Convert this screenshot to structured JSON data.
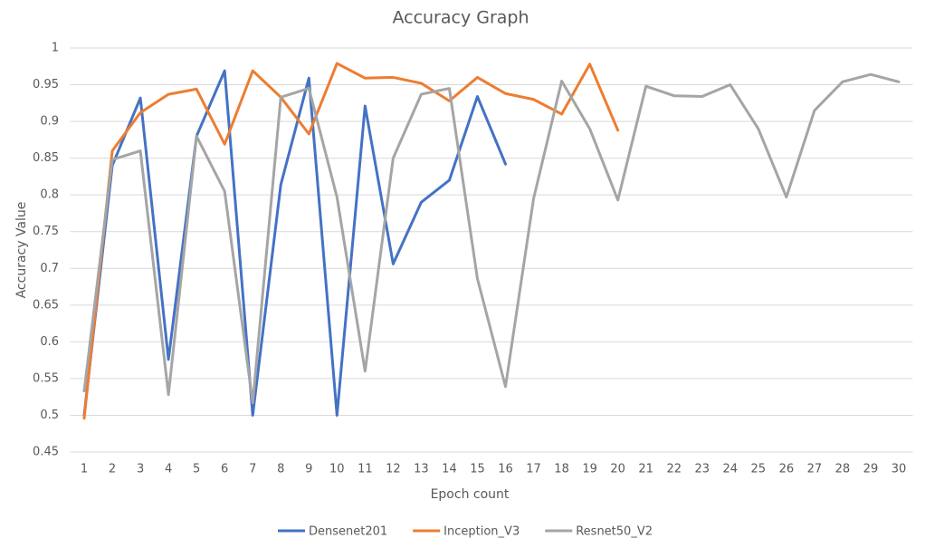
{
  "chart_data": {
    "type": "line",
    "title": "Accuracy Graph",
    "x_label": "Epoch count",
    "y_label": "Accuracy Value",
    "categories": [
      1,
      2,
      3,
      4,
      5,
      6,
      7,
      8,
      9,
      10,
      11,
      12,
      13,
      14,
      15,
      16,
      17,
      18,
      19,
      20,
      21,
      22,
      23,
      24,
      25,
      26,
      27,
      28,
      29,
      30
    ],
    "series": [
      {
        "name": "Densenet201",
        "color": "#4472c4",
        "values": [
          0.5,
          0.84,
          0.932,
          0.576,
          0.88,
          0.969,
          0.5,
          0.814,
          0.959,
          0.5,
          0.921,
          0.706,
          0.79,
          0.82,
          0.934,
          0.842,
          null,
          null,
          null,
          null,
          null,
          null,
          null,
          null,
          null,
          null,
          null,
          null,
          null,
          null
        ]
      },
      {
        "name": "Inception_V3",
        "color": "#ed7d31",
        "values": [
          0.496,
          0.86,
          0.912,
          0.937,
          0.944,
          0.869,
          0.969,
          0.933,
          0.883,
          0.979,
          0.959,
          0.96,
          0.952,
          0.928,
          0.96,
          0.938,
          0.93,
          0.91,
          0.978,
          0.888,
          null,
          null,
          null,
          null,
          null,
          null,
          null,
          null,
          null,
          null
        ]
      },
      {
        "name": "Resnet50_V2",
        "color": "#a5a5a5",
        "values": [
          0.533,
          0.848,
          0.86,
          0.528,
          0.88,
          0.805,
          0.517,
          0.933,
          0.945,
          0.797,
          0.56,
          0.85,
          0.937,
          0.945,
          0.686,
          0.539,
          0.795,
          0.955,
          0.89,
          0.793,
          0.948,
          0.935,
          0.934,
          0.95,
          0.89,
          0.797,
          0.915,
          0.954,
          0.964,
          0.954
        ]
      }
    ],
    "ylim": [
      0.45,
      1
    ],
    "yticks": [
      0.45,
      0.5,
      0.55,
      0.6,
      0.65,
      0.7,
      0.75,
      0.8,
      0.85,
      0.9,
      0.95,
      1
    ],
    "grid": true,
    "legend": "bottom"
  }
}
